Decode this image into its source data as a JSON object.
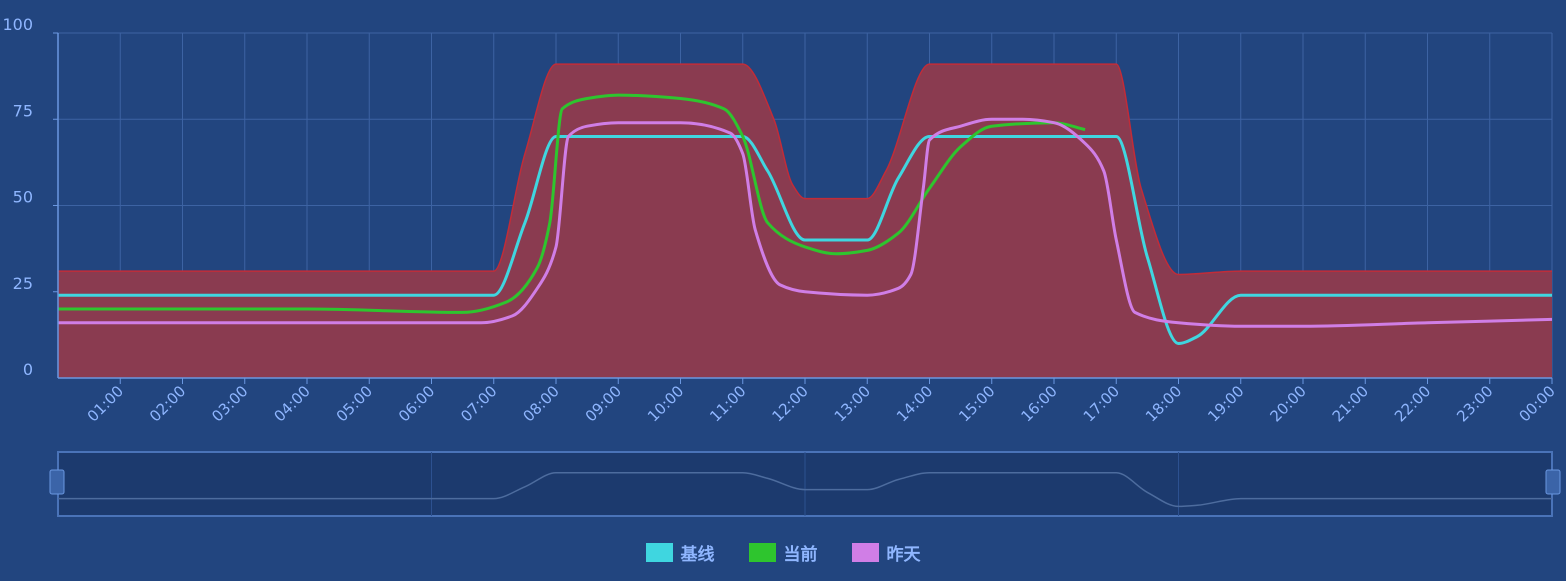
{
  "chart_data": {
    "type": "line",
    "title": "",
    "xlabel": "",
    "ylabel": "",
    "ylim": [
      0,
      100
    ],
    "y_ticks": [
      "0",
      "25",
      "50",
      "75",
      "100"
    ],
    "x_ticks": [
      "01:00",
      "02:00",
      "03:00",
      "04:00",
      "05:00",
      "06:00",
      "07:00",
      "08:00",
      "09:00",
      "10:00",
      "11:00",
      "12:00",
      "13:00",
      "14:00",
      "15:00",
      "16:00",
      "17:00",
      "18:00",
      "19:00",
      "20:00",
      "21:00",
      "22:00",
      "23:00",
      "00:00"
    ],
    "grid": true,
    "legend_position": "bottom-center",
    "band": {
      "color": "#8a3b50",
      "edge_color": "#c22c38",
      "hours": [
        0,
        7.0,
        7.5,
        8.0,
        11.0,
        11.5,
        11.8,
        12.0,
        13.0,
        13.3,
        14.0,
        17.0,
        17.4,
        18.0,
        19.0,
        24
      ],
      "values": [
        31,
        31,
        65,
        91,
        91,
        75,
        56,
        52,
        52,
        60,
        91,
        91,
        55,
        30,
        31,
        31
      ]
    },
    "series": [
      {
        "name": "基线",
        "color": "#3fd6e0",
        "hours": [
          0,
          7.0,
          7.5,
          8.0,
          11.0,
          11.4,
          12.0,
          13.0,
          13.5,
          14.0,
          17.0,
          17.5,
          18.0,
          18.3,
          19.0,
          24
        ],
        "values": [
          24,
          24,
          45,
          70,
          70,
          60,
          40,
          40,
          58,
          70,
          70,
          35,
          10,
          12,
          24,
          24
        ]
      },
      {
        "name": "当前",
        "color": "#2ec52e",
        "hours": [
          0,
          4.0,
          6.5,
          7.2,
          7.7,
          7.9,
          8.1,
          8.5,
          9.0,
          10.0,
          10.7,
          11.0,
          11.4,
          12.0,
          12.5,
          13.0,
          13.5,
          14.0,
          14.5,
          15.0,
          16.0,
          16.5
        ],
        "values": [
          20,
          20,
          19,
          22,
          32,
          45,
          78,
          81,
          82,
          81,
          78,
          70,
          45,
          38,
          36,
          37,
          42,
          55,
          67,
          73,
          74,
          72
        ]
      },
      {
        "name": "昨天",
        "color": "#d07ee6",
        "hours": [
          0,
          3.0,
          6.0,
          6.8,
          7.3,
          7.7,
          8.0,
          8.2,
          8.5,
          9.0,
          10.0,
          10.8,
          11.0,
          11.2,
          11.6,
          12.0,
          13.0,
          13.5,
          13.7,
          13.9,
          14.0,
          14.5,
          15.0,
          15.5,
          16.0,
          16.5,
          16.8,
          17.0,
          17.3,
          18.0,
          19.0,
          20.0,
          22.0,
          24
        ],
        "values": [
          16,
          16,
          16,
          16,
          18,
          26,
          38,
          70,
          73,
          74,
          74,
          71,
          65,
          43,
          27,
          25,
          24,
          26,
          30,
          55,
          69,
          73,
          75,
          75,
          74,
          68,
          60,
          40,
          19,
          16,
          15,
          15,
          16,
          17
        ]
      }
    ]
  }
}
